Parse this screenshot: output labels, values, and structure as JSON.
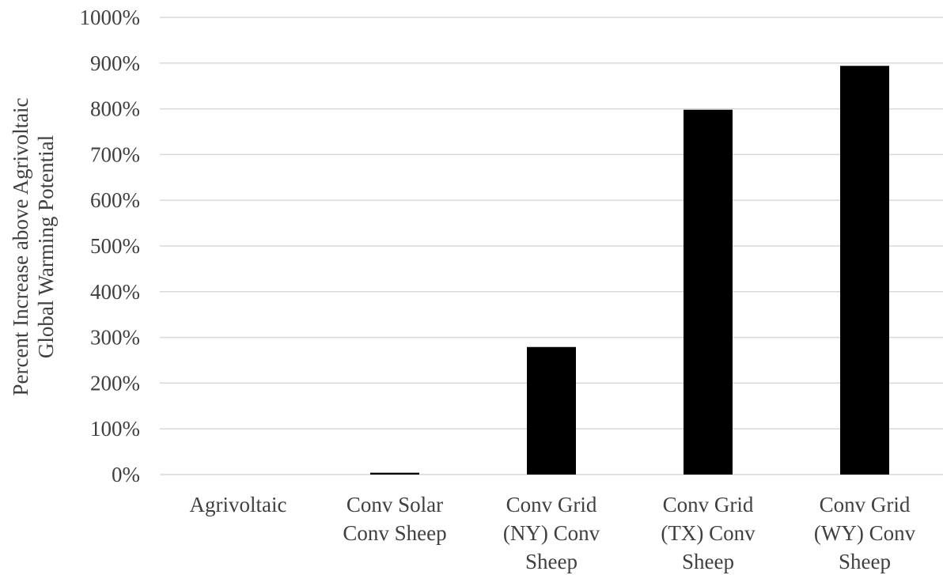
{
  "chart_data": {
    "type": "bar",
    "title": "",
    "xlabel": "",
    "ylabel_lines": [
      "Percent Increase above Agrivoltaic",
      "Global Warming Potential"
    ],
    "categories": [
      [
        "Agrivoltaic"
      ],
      [
        "Conv Solar",
        "Conv Sheep"
      ],
      [
        "Conv Grid",
        "(NY) Conv",
        "Sheep"
      ],
      [
        "Conv Grid",
        "(TX) Conv",
        "Sheep"
      ],
      [
        "Conv Grid",
        "(WY) Conv",
        "Sheep"
      ]
    ],
    "values": [
      0,
      4,
      279,
      798,
      894
    ],
    "ylim": [
      0,
      1000
    ],
    "yticks": [
      "0%",
      "100%",
      "200%",
      "300%",
      "400%",
      "500%",
      "600%",
      "700%",
      "800%",
      "900%",
      "1000%"
    ],
    "ytick_values": [
      0,
      100,
      200,
      300,
      400,
      500,
      600,
      700,
      800,
      900,
      1000
    ],
    "grid": true,
    "legend": "none",
    "colors": {
      "bar": "#000000",
      "grid": "#d9d9d9",
      "text": "#404040"
    }
  }
}
